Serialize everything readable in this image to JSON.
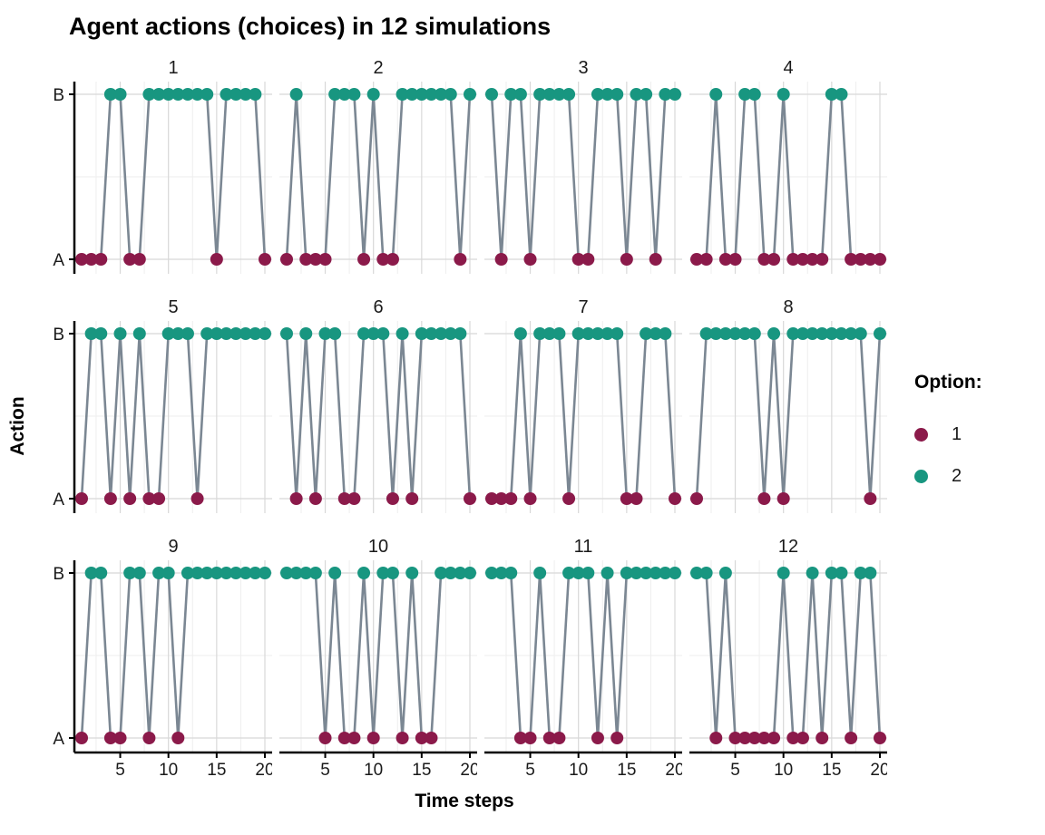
{
  "title": "Agent actions (choices) in 12 simulations",
  "legend": {
    "title": "Option:",
    "items": [
      {
        "label": "1",
        "color": "#8B1A4A"
      },
      {
        "label": "2",
        "color": "#189680"
      }
    ]
  },
  "chart_data": {
    "type": "line",
    "title": "Agent actions (choices) in 12 simulations",
    "xlabel": "Time steps",
    "ylabel": "Action",
    "x_range": [
      1,
      20
    ],
    "x_ticks": [
      5,
      10,
      15,
      20
    ],
    "y_categories": [
      "A",
      "B"
    ],
    "grid": true,
    "legend_position": "right",
    "colors": {
      "option1": "#8B1A4A",
      "option2": "#189680",
      "line": "#7B8793"
    },
    "facets": [
      {
        "label": "1",
        "values": [
          "A",
          "A",
          "A",
          "B",
          "B",
          "A",
          "A",
          "B",
          "B",
          "B",
          "B",
          "B",
          "B",
          "B",
          "A",
          "B",
          "B",
          "B",
          "B",
          "A"
        ]
      },
      {
        "label": "2",
        "values": [
          "A",
          "B",
          "A",
          "A",
          "A",
          "B",
          "B",
          "B",
          "A",
          "B",
          "A",
          "A",
          "B",
          "B",
          "B",
          "B",
          "B",
          "B",
          "A",
          "B"
        ]
      },
      {
        "label": "3",
        "values": [
          "B",
          "A",
          "B",
          "B",
          "A",
          "B",
          "B",
          "B",
          "B",
          "A",
          "A",
          "B",
          "B",
          "B",
          "A",
          "B",
          "B",
          "A",
          "B",
          "B"
        ]
      },
      {
        "label": "4",
        "values": [
          "A",
          "A",
          "B",
          "A",
          "A",
          "B",
          "B",
          "A",
          "A",
          "B",
          "A",
          "A",
          "A",
          "A",
          "B",
          "B",
          "A",
          "A",
          "A",
          "A"
        ]
      },
      {
        "label": "5",
        "values": [
          "A",
          "B",
          "B",
          "A",
          "B",
          "A",
          "B",
          "A",
          "A",
          "B",
          "B",
          "B",
          "A",
          "B",
          "B",
          "B",
          "B",
          "B",
          "B",
          "B"
        ]
      },
      {
        "label": "6",
        "values": [
          "B",
          "A",
          "B",
          "A",
          "B",
          "B",
          "A",
          "A",
          "B",
          "B",
          "B",
          "A",
          "B",
          "A",
          "B",
          "B",
          "B",
          "B",
          "B",
          "A"
        ]
      },
      {
        "label": "7",
        "values": [
          "A",
          "A",
          "A",
          "B",
          "A",
          "B",
          "B",
          "B",
          "A",
          "B",
          "B",
          "B",
          "B",
          "B",
          "A",
          "A",
          "B",
          "B",
          "B",
          "A"
        ]
      },
      {
        "label": "8",
        "values": [
          "A",
          "B",
          "B",
          "B",
          "B",
          "B",
          "B",
          "A",
          "B",
          "A",
          "B",
          "B",
          "B",
          "B",
          "B",
          "B",
          "B",
          "B",
          "A",
          "B"
        ]
      },
      {
        "label": "9",
        "values": [
          "A",
          "B",
          "B",
          "A",
          "A",
          "B",
          "B",
          "A",
          "B",
          "B",
          "A",
          "B",
          "B",
          "B",
          "B",
          "B",
          "B",
          "B",
          "B",
          "B"
        ]
      },
      {
        "label": "10",
        "values": [
          "B",
          "B",
          "B",
          "B",
          "A",
          "B",
          "A",
          "A",
          "B",
          "A",
          "B",
          "B",
          "A",
          "B",
          "A",
          "A",
          "B",
          "B",
          "B",
          "B"
        ]
      },
      {
        "label": "11",
        "values": [
          "B",
          "B",
          "B",
          "A",
          "A",
          "B",
          "A",
          "A",
          "B",
          "B",
          "B",
          "A",
          "B",
          "A",
          "B",
          "B",
          "B",
          "B",
          "B",
          "B"
        ]
      },
      {
        "label": "12",
        "values": [
          "B",
          "B",
          "A",
          "B",
          "A",
          "A",
          "A",
          "A",
          "A",
          "B",
          "A",
          "A",
          "B",
          "A",
          "B",
          "B",
          "A",
          "B",
          "B",
          "A"
        ]
      }
    ]
  }
}
